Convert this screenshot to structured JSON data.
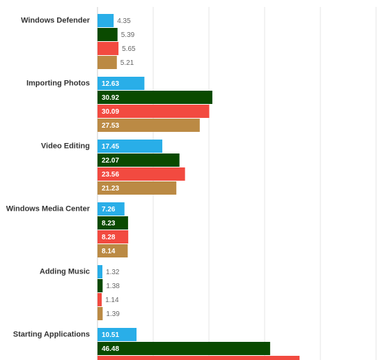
{
  "chart_data": {
    "type": "bar",
    "orientation": "horizontal",
    "categories": [
      "Windows Defender",
      "Importing Photos",
      "Video Editing",
      "Windows Media Center",
      "Adding Music",
      "Starting Applications"
    ],
    "series": [
      {
        "color": "#29aee8",
        "values": [
          4.35,
          12.63,
          17.45,
          7.26,
          1.32,
          10.51
        ]
      },
      {
        "color": "#0a4a00",
        "values": [
          5.39,
          30.92,
          22.07,
          8.23,
          1.38,
          46.48
        ]
      },
      {
        "color": "#f24a40",
        "values": [
          5.65,
          30.09,
          23.56,
          8.28,
          1.14,
          54.4
        ],
        "value_labels": [
          "5.65",
          "30.09",
          "23.56",
          "8.28",
          "1.14",
          null
        ]
      },
      {
        "color": "#bb8a44",
        "values": [
          5.21,
          27.53,
          21.23,
          8.14,
          1.39,
          null
        ]
      }
    ],
    "xlim": [
      0,
      75
    ],
    "xticks": [
      0,
      15,
      30,
      45,
      60,
      75
    ],
    "grid": true
  }
}
